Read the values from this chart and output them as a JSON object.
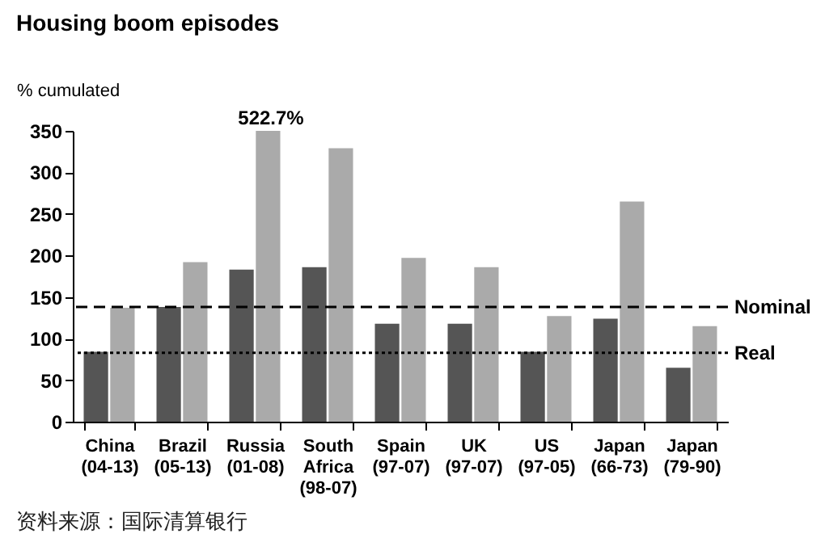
{
  "chart_data": {
    "type": "bar",
    "title": "Housing boom episodes",
    "ylabel": "% cumulated",
    "categories": [
      "China (04-13)",
      "Brazil (05-13)",
      "Russia (01-08)",
      "South Africa (98-07)",
      "Spain (97-07)",
      "UK (97-07)",
      "US (97-05)",
      "Japan (66-73)",
      "Japan (79-90)"
    ],
    "series": [
      {
        "color": "#555555",
        "values": [
          84,
          138,
          183,
          186,
          118,
          118,
          84,
          124,
          65
        ]
      },
      {
        "color": "#aaaaaa",
        "values": [
          137,
          192,
          350,
          329,
          197,
          186,
          127,
          265,
          115
        ]
      }
    ],
    "ylim": [
      0,
      350
    ],
    "yticks": [
      0,
      50,
      100,
      150,
      200,
      250,
      300,
      350
    ],
    "grid": false,
    "ref_lines": [
      {
        "axis": "y",
        "value": 83,
        "label": "Real",
        "line_style": "dotted",
        "color": "#000000"
      },
      {
        "axis": "y",
        "value": 138,
        "label": "Nominal",
        "line_style": "dashed",
        "color": "#000000"
      }
    ],
    "annotations": [
      {
        "text": "522.7%",
        "x": "Russia (01-08)",
        "y": 350
      },
      "资料来源：国际清算银行"
    ]
  }
}
